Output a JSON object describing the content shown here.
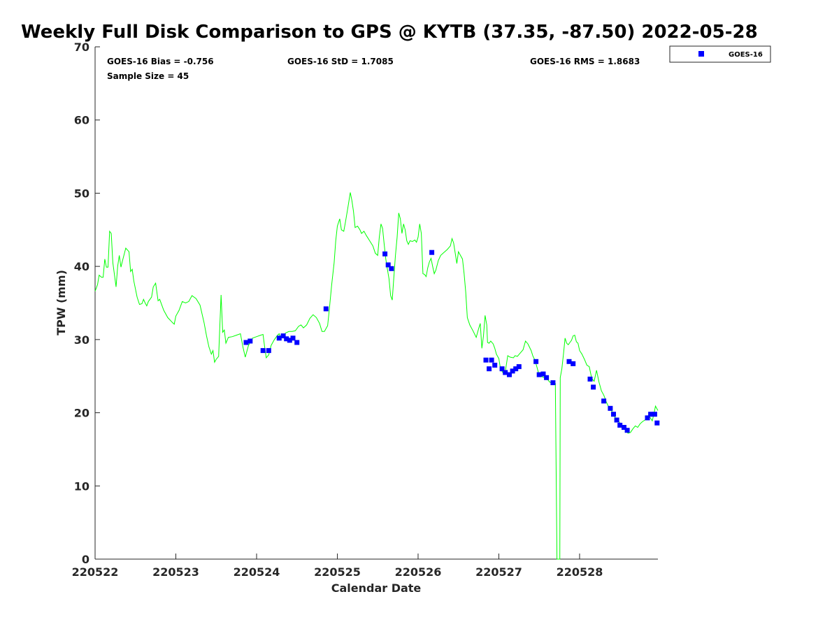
{
  "chart_data": {
    "type": "line",
    "title": "Weekly Full Disk Comparison to GPS @ KYTB (37.35, -87.50) 2022-05-28",
    "xlabel": "Calendar Date",
    "ylabel": "TPW (mm)",
    "xlim": [
      0,
      6.97
    ],
    "ylim": [
      0,
      70
    ],
    "x_ticks": [
      {
        "pos": 0,
        "label": "220522"
      },
      {
        "pos": 1,
        "label": "220523"
      },
      {
        "pos": 2,
        "label": "220524"
      },
      {
        "pos": 3,
        "label": "220525"
      },
      {
        "pos": 4,
        "label": "220526"
      },
      {
        "pos": 5,
        "label": "220527"
      },
      {
        "pos": 6,
        "label": "220528"
      }
    ],
    "y_ticks": [
      0,
      10,
      20,
      30,
      40,
      50,
      60,
      70
    ],
    "grid": false,
    "legend_position": "top-right",
    "stats": {
      "bias": "GOES-16 Bias = -0.756",
      "std": "GOES-16 StD = 1.7085",
      "rms": "GOES-16 RMS = 1.8683",
      "sample": "Sample Size = 45"
    },
    "series": [
      {
        "name": "GOES-16",
        "kind": "scatter",
        "color": "#0000ff",
        "points": [
          [
            1.87,
            29.6
          ],
          [
            1.92,
            29.8
          ],
          [
            2.08,
            28.5
          ],
          [
            2.15,
            28.5
          ],
          [
            2.28,
            30.2
          ],
          [
            2.33,
            30.5
          ],
          [
            2.37,
            30.1
          ],
          [
            2.41,
            29.9
          ],
          [
            2.45,
            30.2
          ],
          [
            2.5,
            29.6
          ],
          [
            2.86,
            34.2
          ],
          [
            3.59,
            41.7
          ],
          [
            3.63,
            40.2
          ],
          [
            3.67,
            39.7
          ],
          [
            4.17,
            41.9
          ],
          [
            4.84,
            27.2
          ],
          [
            4.88,
            26.0
          ],
          [
            4.91,
            27.2
          ],
          [
            4.95,
            26.5
          ],
          [
            5.04,
            26.0
          ],
          [
            5.08,
            25.5
          ],
          [
            5.13,
            25.2
          ],
          [
            5.17,
            25.7
          ],
          [
            5.21,
            26.0
          ],
          [
            5.25,
            26.3
          ],
          [
            5.46,
            27.0
          ],
          [
            5.5,
            25.2
          ],
          [
            5.55,
            25.3
          ],
          [
            5.59,
            24.8
          ],
          [
            5.67,
            24.1
          ],
          [
            5.87,
            27.0
          ],
          [
            5.92,
            26.7
          ],
          [
            6.13,
            24.6
          ],
          [
            6.17,
            23.5
          ],
          [
            6.3,
            21.6
          ],
          [
            6.38,
            20.6
          ],
          [
            6.42,
            19.8
          ],
          [
            6.46,
            19.0
          ],
          [
            6.5,
            18.3
          ],
          [
            6.55,
            18.0
          ],
          [
            6.59,
            17.6
          ],
          [
            6.84,
            19.3
          ],
          [
            6.88,
            19.8
          ],
          [
            6.93,
            19.8
          ],
          [
            6.96,
            18.6
          ]
        ]
      },
      {
        "kind": "line",
        "color": "#00ff00",
        "points": [
          [
            0.0,
            36.6
          ],
          [
            0.03,
            37.5
          ],
          [
            0.05,
            38.8
          ],
          [
            0.08,
            38.5
          ],
          [
            0.1,
            38.5
          ],
          [
            0.12,
            41.0
          ],
          [
            0.14,
            39.9
          ],
          [
            0.16,
            39.9
          ],
          [
            0.18,
            44.8
          ],
          [
            0.2,
            44.5
          ],
          [
            0.22,
            40.5
          ],
          [
            0.26,
            37.2
          ],
          [
            0.28,
            40.0
          ],
          [
            0.3,
            41.5
          ],
          [
            0.32,
            39.9
          ],
          [
            0.34,
            40.8
          ],
          [
            0.38,
            42.5
          ],
          [
            0.42,
            42.0
          ],
          [
            0.44,
            39.3
          ],
          [
            0.46,
            39.6
          ],
          [
            0.48,
            38.0
          ],
          [
            0.52,
            35.8
          ],
          [
            0.55,
            34.8
          ],
          [
            0.58,
            34.9
          ],
          [
            0.6,
            35.5
          ],
          [
            0.62,
            35.0
          ],
          [
            0.64,
            34.6
          ],
          [
            0.66,
            35.2
          ],
          [
            0.7,
            35.8
          ],
          [
            0.72,
            37.2
          ],
          [
            0.75,
            37.7
          ],
          [
            0.78,
            35.3
          ],
          [
            0.8,
            35.5
          ],
          [
            0.85,
            34.0
          ],
          [
            0.9,
            33.0
          ],
          [
            0.96,
            32.3
          ],
          [
            0.98,
            32.1
          ],
          [
            1.0,
            33.2
          ],
          [
            1.04,
            34.0
          ],
          [
            1.08,
            35.2
          ],
          [
            1.12,
            35.0
          ],
          [
            1.16,
            35.2
          ],
          [
            1.2,
            36.0
          ],
          [
            1.25,
            35.6
          ],
          [
            1.3,
            34.7
          ],
          [
            1.35,
            32.3
          ],
          [
            1.38,
            30.5
          ],
          [
            1.41,
            29.0
          ],
          [
            1.44,
            28.0
          ],
          [
            1.46,
            28.5
          ],
          [
            1.48,
            26.9
          ],
          [
            1.5,
            27.3
          ],
          [
            1.53,
            27.7
          ],
          [
            1.56,
            36.1
          ],
          [
            1.58,
            31.0
          ],
          [
            1.6,
            31.3
          ],
          [
            1.62,
            29.5
          ],
          [
            1.65,
            30.3
          ],
          [
            1.7,
            30.4
          ],
          [
            1.75,
            30.6
          ],
          [
            1.8,
            30.8
          ],
          [
            1.83,
            29.0
          ],
          [
            1.86,
            27.6
          ],
          [
            1.9,
            29.2
          ],
          [
            1.95,
            30.2
          ],
          [
            2.0,
            30.4
          ],
          [
            2.05,
            30.6
          ],
          [
            2.08,
            30.7
          ],
          [
            2.1,
            29.0
          ],
          [
            2.12,
            27.5
          ],
          [
            2.15,
            27.9
          ],
          [
            2.18,
            29.2
          ],
          [
            2.22,
            30.0
          ],
          [
            2.26,
            30.6
          ],
          [
            2.28,
            30.8
          ],
          [
            2.3,
            30.2
          ],
          [
            2.33,
            30.6
          ],
          [
            2.36,
            30.9
          ],
          [
            2.4,
            31.1
          ],
          [
            2.44,
            31.1
          ],
          [
            2.48,
            31.2
          ],
          [
            2.52,
            31.8
          ],
          [
            2.55,
            32.0
          ],
          [
            2.58,
            31.6
          ],
          [
            2.62,
            32.0
          ],
          [
            2.66,
            32.9
          ],
          [
            2.7,
            33.4
          ],
          [
            2.74,
            33.0
          ],
          [
            2.78,
            32.2
          ],
          [
            2.81,
            31.1
          ],
          [
            2.84,
            31.1
          ],
          [
            2.86,
            31.5
          ],
          [
            2.88,
            31.9
          ],
          [
            2.9,
            34.0
          ],
          [
            2.93,
            37.5
          ],
          [
            2.96,
            40.5
          ],
          [
            2.98,
            43.5
          ],
          [
            3.0,
            45.5
          ],
          [
            3.03,
            46.5
          ],
          [
            3.05,
            45.0
          ],
          [
            3.08,
            44.8
          ],
          [
            3.1,
            46.0
          ],
          [
            3.13,
            48.0
          ],
          [
            3.16,
            50.1
          ],
          [
            3.18,
            49.0
          ],
          [
            3.2,
            47.5
          ],
          [
            3.22,
            45.3
          ],
          [
            3.25,
            45.5
          ],
          [
            3.28,
            45.0
          ],
          [
            3.3,
            44.5
          ],
          [
            3.33,
            44.8
          ],
          [
            3.36,
            44.2
          ],
          [
            3.4,
            43.5
          ],
          [
            3.44,
            42.8
          ],
          [
            3.47,
            41.8
          ],
          [
            3.5,
            41.5
          ],
          [
            3.52,
            44.0
          ],
          [
            3.54,
            45.8
          ],
          [
            3.56,
            45.2
          ],
          [
            3.58,
            43.0
          ],
          [
            3.6,
            41.0
          ],
          [
            3.62,
            39.6
          ],
          [
            3.64,
            38.3
          ],
          [
            3.66,
            36.0
          ],
          [
            3.68,
            35.4
          ],
          [
            3.7,
            38.5
          ],
          [
            3.72,
            41.5
          ],
          [
            3.74,
            44.0
          ],
          [
            3.76,
            47.3
          ],
          [
            3.78,
            46.5
          ],
          [
            3.8,
            44.5
          ],
          [
            3.82,
            45.8
          ],
          [
            3.84,
            45.0
          ],
          [
            3.86,
            43.5
          ],
          [
            3.88,
            43.0
          ],
          [
            3.9,
            43.5
          ],
          [
            3.93,
            43.4
          ],
          [
            3.96,
            43.6
          ],
          [
            3.98,
            43.3
          ],
          [
            4.0,
            44.0
          ],
          [
            4.02,
            45.8
          ],
          [
            4.04,
            44.5
          ],
          [
            4.06,
            39.0
          ],
          [
            4.08,
            38.9
          ],
          [
            4.1,
            38.6
          ],
          [
            4.12,
            39.8
          ],
          [
            4.14,
            40.6
          ],
          [
            4.16,
            41.1
          ],
          [
            4.18,
            40.0
          ],
          [
            4.2,
            39.0
          ],
          [
            4.22,
            39.5
          ],
          [
            4.25,
            40.8
          ],
          [
            4.28,
            41.5
          ],
          [
            4.32,
            41.9
          ],
          [
            4.36,
            42.3
          ],
          [
            4.4,
            42.8
          ],
          [
            4.42,
            43.8
          ],
          [
            4.44,
            43.2
          ],
          [
            4.46,
            41.8
          ],
          [
            4.48,
            40.4
          ],
          [
            4.5,
            42.0
          ],
          [
            4.52,
            41.6
          ],
          [
            4.55,
            41.0
          ],
          [
            4.57,
            39.0
          ],
          [
            4.59,
            36.5
          ],
          [
            4.61,
            33.0
          ],
          [
            4.64,
            32.0
          ],
          [
            4.68,
            31.2
          ],
          [
            4.72,
            30.3
          ],
          [
            4.75,
            31.5
          ],
          [
            4.77,
            32.2
          ],
          [
            4.79,
            28.8
          ],
          [
            4.81,
            30.5
          ],
          [
            4.83,
            33.3
          ],
          [
            4.85,
            32.0
          ],
          [
            4.86,
            29.6
          ],
          [
            4.88,
            29.5
          ],
          [
            4.9,
            29.8
          ],
          [
            4.93,
            29.4
          ],
          [
            4.95,
            28.8
          ],
          [
            4.97,
            28.0
          ],
          [
            5.0,
            27.4
          ],
          [
            5.02,
            26.0
          ],
          [
            5.05,
            25.5
          ],
          [
            5.08,
            25.6
          ],
          [
            5.11,
            27.8
          ],
          [
            5.14,
            27.6
          ],
          [
            5.18,
            27.5
          ],
          [
            5.2,
            27.8
          ],
          [
            5.23,
            27.7
          ],
          [
            5.26,
            28.1
          ],
          [
            5.3,
            28.6
          ],
          [
            5.33,
            29.8
          ],
          [
            5.36,
            29.4
          ],
          [
            5.4,
            28.5
          ],
          [
            5.42,
            27.8
          ],
          [
            5.45,
            27.1
          ],
          [
            5.47,
            26.3
          ],
          [
            5.49,
            25.5
          ],
          [
            5.52,
            25.0
          ],
          [
            5.56,
            24.8
          ],
          [
            5.6,
            24.6
          ],
          [
            5.63,
            24.2
          ],
          [
            5.66,
            24.0
          ],
          [
            5.68,
            24.2
          ],
          [
            5.7,
            24.0
          ],
          [
            5.72,
            0.0
          ],
          [
            5.74,
            0.0
          ],
          [
            5.755,
            0.0
          ],
          [
            5.76,
            24.8
          ],
          [
            5.78,
            26.0
          ],
          [
            5.8,
            28.0
          ],
          [
            5.82,
            30.2
          ],
          [
            5.84,
            29.5
          ],
          [
            5.86,
            29.3
          ],
          [
            5.88,
            29.6
          ],
          [
            5.9,
            29.9
          ],
          [
            5.92,
            30.5
          ],
          [
            5.94,
            30.6
          ],
          [
            5.96,
            29.7
          ],
          [
            5.98,
            29.5
          ],
          [
            6.0,
            28.5
          ],
          [
            6.03,
            28.0
          ],
          [
            6.06,
            27.3
          ],
          [
            6.09,
            26.5
          ],
          [
            6.12,
            26.3
          ],
          [
            6.15,
            24.7
          ],
          [
            6.18,
            24.3
          ],
          [
            6.21,
            25.8
          ],
          [
            6.24,
            24.2
          ],
          [
            6.27,
            23.0
          ],
          [
            6.3,
            22.4
          ],
          [
            6.33,
            21.5
          ],
          [
            6.36,
            20.8
          ],
          [
            6.4,
            20.2
          ],
          [
            6.43,
            19.5
          ],
          [
            6.47,
            19.0
          ],
          [
            6.5,
            18.6
          ],
          [
            6.53,
            18.0
          ],
          [
            6.56,
            17.8
          ],
          [
            6.58,
            17.4
          ],
          [
            6.6,
            17.2
          ],
          [
            6.63,
            17.3
          ],
          [
            6.66,
            17.8
          ],
          [
            6.69,
            18.2
          ],
          [
            6.72,
            18.0
          ],
          [
            6.75,
            18.5
          ],
          [
            6.78,
            18.8
          ],
          [
            6.81,
            19.0
          ],
          [
            6.84,
            19.6
          ],
          [
            6.87,
            19.4
          ],
          [
            6.9,
            18.9
          ],
          [
            6.92,
            19.8
          ],
          [
            6.94,
            20.9
          ],
          [
            6.96,
            20.5
          ],
          [
            6.97,
            20.3
          ]
        ]
      }
    ]
  }
}
